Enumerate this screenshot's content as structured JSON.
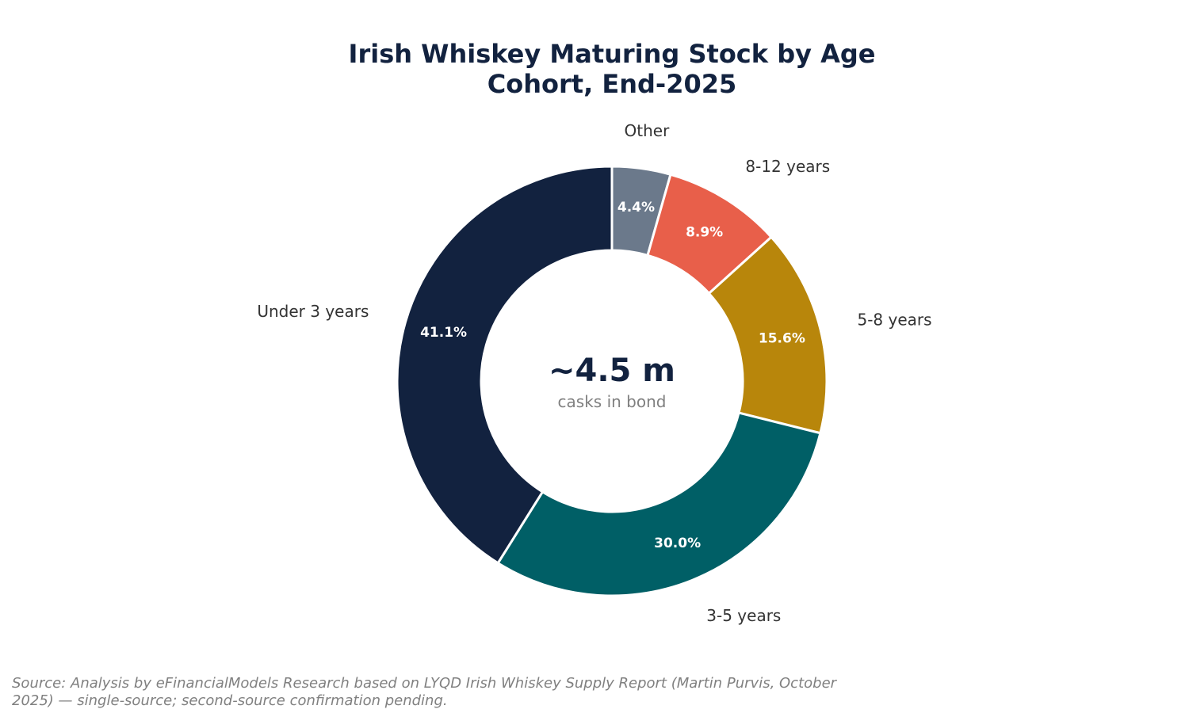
{
  "chart_data": {
    "type": "pie",
    "title_lines": [
      "Irish Whiskey Maturing Stock by Age",
      "Cohort, End-2025"
    ],
    "categories": [
      "Other",
      "8-12 years",
      "5-8 years",
      "3-5 years",
      "Under 3 years"
    ],
    "values": [
      4.4,
      8.9,
      15.6,
      30.0,
      41.1
    ],
    "value_labels": [
      "4.4%",
      "8.9%",
      "15.6%",
      "30.0%",
      "41.1%"
    ],
    "colors": [
      "#6b798b",
      "#e85f4a",
      "#b8860b",
      "#005f66",
      "#12223f"
    ],
    "donut": true,
    "center_value": "~4.5 m",
    "center_caption": "casks in bond",
    "legend": "none"
  },
  "source_note": "Source: Analysis by eFinancialModels Research based on LYQD Irish Whiskey Supply Report (Martin Purvis, October 2025) — single-source; second-source confirmation pending."
}
